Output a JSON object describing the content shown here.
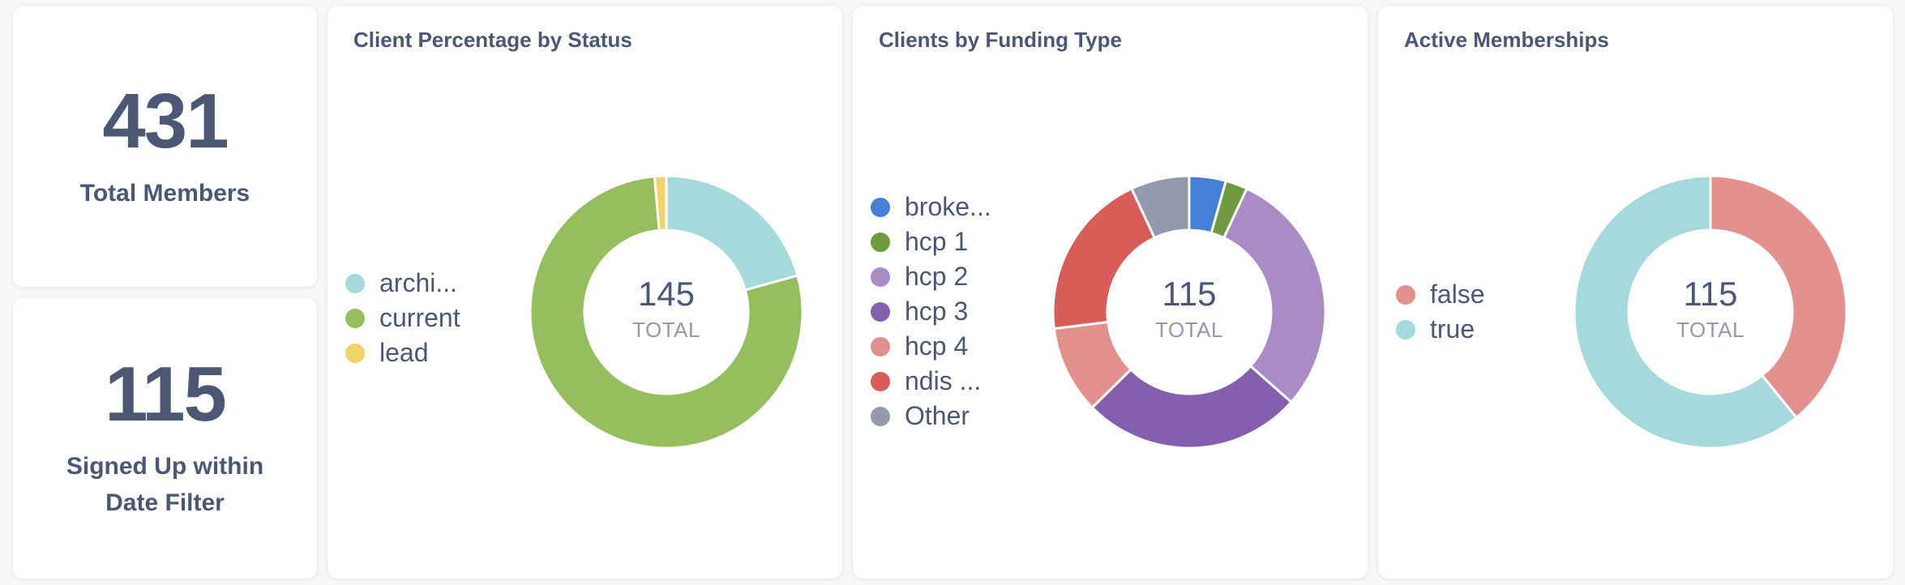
{
  "cards": {
    "total_members": {
      "value": "431",
      "label": "Total Members"
    },
    "signed_up": {
      "value": "115",
      "label": "Signed Up within Date Filter"
    }
  },
  "status_chart": {
    "title": "Client Percentage by Status",
    "total": "145",
    "total_label": "TOTAL",
    "legend": [
      {
        "label": "archi...",
        "color": "#a6d9db"
      },
      {
        "label": "current",
        "color": "#97be5e"
      },
      {
        "label": "lead",
        "color": "#f0d36b"
      }
    ]
  },
  "funding_chart": {
    "title": "Clients by Funding Type",
    "total": "115",
    "total_label": "TOTAL",
    "legend": [
      {
        "label": "broke...",
        "color": "#4580d6"
      },
      {
        "label": "hcp 1",
        "color": "#6f9a3f"
      },
      {
        "label": "hcp 2",
        "color": "#a98bc5"
      },
      {
        "label": "hcp 3",
        "color": "#845fad"
      },
      {
        "label": "hcp 4",
        "color": "#e2918e"
      },
      {
        "label": "ndis ...",
        "color": "#d85c57"
      },
      {
        "label": "Other",
        "color": "#949aab"
      }
    ]
  },
  "membership_chart": {
    "title": "Active Memberships",
    "total": "115",
    "total_label": "TOTAL",
    "legend": [
      {
        "label": "false",
        "color": "#e2918e"
      },
      {
        "label": "true",
        "color": "#a6d9db"
      }
    ]
  },
  "chart_data": [
    {
      "type": "pie",
      "title": "Client Percentage by Status",
      "categories": [
        "archi...",
        "current",
        "lead"
      ],
      "values": [
        30,
        113,
        2
      ],
      "total": 145
    },
    {
      "type": "pie",
      "title": "Clients by Funding Type",
      "categories": [
        "broke...",
        "hcp 1",
        "hcp 2",
        "hcp 3",
        "hcp 4",
        "ndis ...",
        "Other"
      ],
      "values": [
        5,
        3,
        34,
        30,
        12,
        23,
        8
      ],
      "total": 115
    },
    {
      "type": "pie",
      "title": "Active Memberships",
      "categories": [
        "false",
        "true"
      ],
      "values": [
        45,
        70
      ],
      "total": 115
    }
  ]
}
